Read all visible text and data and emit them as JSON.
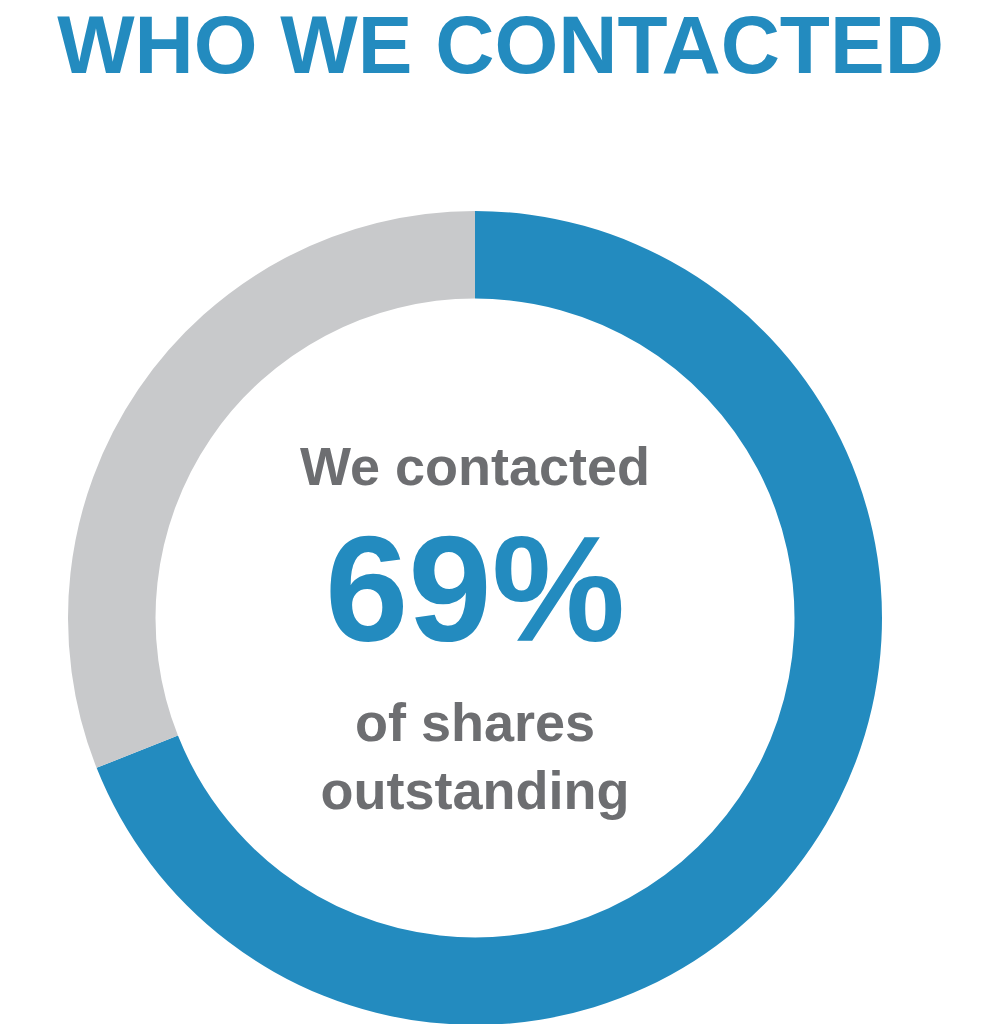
{
  "chart_data": {
    "type": "donut",
    "title": "WHO WE CONTACTED",
    "categories": [
      null,
      null
    ],
    "values": [
      69,
      31
    ],
    "colors": [
      "#238bbf",
      "#c8c9cb"
    ],
    "value_labels": [
      "69%",
      null
    ],
    "annotations": [
      "We contacted",
      "of shares outstanding"
    ],
    "legend": false
  }
}
